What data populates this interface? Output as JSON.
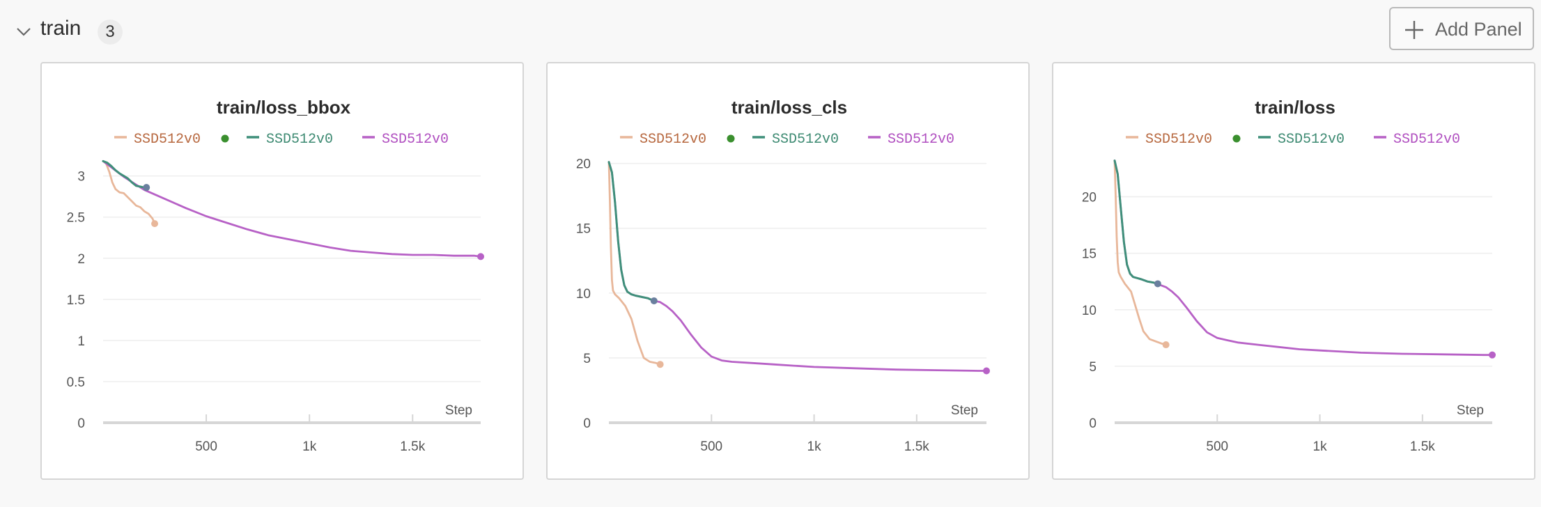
{
  "section": {
    "title": "train",
    "count": "3",
    "add_panel_label": "Add Panel"
  },
  "icons": {
    "collapse": "chevron-down-icon",
    "add": "plus-icon"
  },
  "colors": {
    "series_orange": "#e8b79a",
    "series_orange_text": "#b7683f",
    "series_green": "#3f8f7a",
    "series_green_text": "#3d8a72",
    "series_purple": "#b761c6",
    "series_purple_text": "#b04fc0",
    "running_dot": "#3a8f2e",
    "grid": "#eeeeee",
    "axis": "#d6d6d6"
  },
  "chart_data": [
    {
      "type": "line",
      "title": "train/loss_bbox",
      "xlabel": "Step",
      "ylabel": "",
      "xlim": [
        0,
        1830
      ],
      "ylim": [
        0,
        3.2
      ],
      "yticks": [
        0,
        0.5,
        1,
        1.5,
        2,
        2.5,
        3
      ],
      "ytick_labels": [
        "0",
        "0.5",
        "1",
        "1.5",
        "2",
        "2.5",
        "3"
      ],
      "xticks": [
        500,
        1000,
        1500
      ],
      "xtick_labels": [
        "500",
        "1k",
        "1.5k"
      ],
      "legend": "top",
      "series": [
        {
          "name": "SSD512v0",
          "color": "#e8b79a",
          "text_color": "#b7683f",
          "running": true,
          "x": [
            0,
            15,
            30,
            45,
            60,
            80,
            100,
            120,
            140,
            160,
            180,
            200,
            220,
            240,
            250
          ],
          "y": [
            3.18,
            3.15,
            3.05,
            2.92,
            2.84,
            2.8,
            2.79,
            2.74,
            2.69,
            2.64,
            2.62,
            2.57,
            2.54,
            2.48,
            2.42
          ]
        },
        {
          "name": "SSD512v0",
          "color": "#3f8f7a",
          "text_color": "#3d8a72",
          "running": false,
          "x": [
            0,
            20,
            40,
            60,
            80,
            100,
            120,
            140,
            160,
            180,
            200,
            210
          ],
          "y": [
            3.18,
            3.16,
            3.12,
            3.07,
            3.03,
            3.0,
            2.97,
            2.92,
            2.88,
            2.87,
            2.86,
            2.86
          ]
        },
        {
          "name": "SSD512v0",
          "color": "#b761c6",
          "text_color": "#b04fc0",
          "running": false,
          "x": [
            0,
            100,
            200,
            300,
            400,
            500,
            600,
            700,
            800,
            900,
            1000,
            1100,
            1200,
            1300,
            1400,
            1500,
            1600,
            1700,
            1800,
            1830
          ],
          "y": [
            3.18,
            2.99,
            2.83,
            2.72,
            2.61,
            2.51,
            2.43,
            2.35,
            2.28,
            2.23,
            2.18,
            2.13,
            2.09,
            2.07,
            2.05,
            2.04,
            2.04,
            2.03,
            2.03,
            2.02
          ]
        }
      ]
    },
    {
      "type": "line",
      "title": "train/loss_cls",
      "xlabel": "Step",
      "ylabel": "",
      "xlim": [
        0,
        1840
      ],
      "ylim": [
        0,
        20.3
      ],
      "yticks": [
        0,
        5,
        10,
        15,
        20
      ],
      "ytick_labels": [
        "0",
        "5",
        "10",
        "15",
        "20"
      ],
      "xticks": [
        500,
        1000,
        1500
      ],
      "xtick_labels": [
        "500",
        "1k",
        "1.5k"
      ],
      "legend": "top",
      "series": [
        {
          "name": "SSD512v0",
          "color": "#e8b79a",
          "text_color": "#b7683f",
          "running": true,
          "x": [
            0,
            5,
            10,
            15,
            20,
            30,
            50,
            80,
            110,
            140,
            170,
            200,
            230,
            250
          ],
          "y": [
            20.1,
            17.0,
            13.5,
            11.0,
            10.2,
            9.9,
            9.6,
            9.0,
            8.0,
            6.3,
            5.0,
            4.7,
            4.6,
            4.5
          ]
        },
        {
          "name": "SSD512v0",
          "color": "#3f8f7a",
          "text_color": "#3d8a72",
          "running": false,
          "x": [
            0,
            15,
            30,
            45,
            60,
            75,
            90,
            110,
            130,
            160,
            190,
            220
          ],
          "y": [
            20.1,
            19.3,
            17.0,
            14.0,
            11.8,
            10.6,
            10.1,
            9.9,
            9.8,
            9.7,
            9.6,
            9.4
          ]
        },
        {
          "name": "SSD512v0",
          "color": "#b761c6",
          "text_color": "#b04fc0",
          "running": false,
          "x": [
            0,
            15,
            30,
            45,
            60,
            75,
            90,
            110,
            130,
            160,
            190,
            220,
            250,
            280,
            310,
            350,
            400,
            450,
            500,
            550,
            600,
            700,
            800,
            900,
            1000,
            1200,
            1400,
            1600,
            1800,
            1840
          ],
          "y": [
            20.1,
            19.3,
            17.0,
            14.0,
            11.8,
            10.6,
            10.1,
            9.9,
            9.8,
            9.7,
            9.6,
            9.4,
            9.3,
            9.0,
            8.6,
            7.9,
            6.8,
            5.8,
            5.1,
            4.8,
            4.7,
            4.6,
            4.5,
            4.4,
            4.3,
            4.2,
            4.1,
            4.05,
            4.0,
            4.0
          ]
        }
      ]
    },
    {
      "type": "line",
      "title": "train/loss",
      "xlabel": "Step",
      "ylabel": "",
      "xlim": [
        0,
        1840
      ],
      "ylim": [
        0,
        23.3
      ],
      "yticks": [
        0,
        5,
        10,
        15,
        20
      ],
      "ytick_labels": [
        "0",
        "5",
        "10",
        "15",
        "20"
      ],
      "xticks": [
        500,
        1000,
        1500
      ],
      "xtick_labels": [
        "500",
        "1k",
        "1.5k"
      ],
      "legend": "top",
      "series": [
        {
          "name": "SSD512v0",
          "color": "#e8b79a",
          "text_color": "#b7683f",
          "running": true,
          "x": [
            0,
            5,
            10,
            15,
            20,
            30,
            50,
            80,
            100,
            120,
            140,
            170,
            200,
            230,
            250
          ],
          "y": [
            23.2,
            20.0,
            16.5,
            14.2,
            13.3,
            12.9,
            12.3,
            11.6,
            10.4,
            9.2,
            8.1,
            7.4,
            7.2,
            7.0,
            6.9
          ]
        },
        {
          "name": "SSD512v0",
          "color": "#3f8f7a",
          "text_color": "#3d8a72",
          "running": false,
          "x": [
            0,
            15,
            30,
            45,
            60,
            75,
            90,
            110,
            130,
            160,
            190,
            210
          ],
          "y": [
            23.2,
            22.0,
            19.0,
            16.0,
            14.0,
            13.2,
            12.9,
            12.8,
            12.7,
            12.5,
            12.4,
            12.3
          ]
        },
        {
          "name": "SSD512v0",
          "color": "#b761c6",
          "text_color": "#b04fc0",
          "running": false,
          "x": [
            0,
            15,
            30,
            45,
            60,
            75,
            90,
            110,
            130,
            160,
            190,
            220,
            250,
            280,
            310,
            350,
            400,
            450,
            500,
            550,
            600,
            700,
            800,
            900,
            1000,
            1200,
            1400,
            1600,
            1800,
            1840
          ],
          "y": [
            23.2,
            22.0,
            19.0,
            16.0,
            14.0,
            13.2,
            12.9,
            12.8,
            12.7,
            12.5,
            12.4,
            12.2,
            12.0,
            11.6,
            11.1,
            10.2,
            9.0,
            8.0,
            7.5,
            7.3,
            7.1,
            6.9,
            6.7,
            6.5,
            6.4,
            6.2,
            6.1,
            6.05,
            6.0,
            6.0
          ]
        }
      ]
    }
  ]
}
